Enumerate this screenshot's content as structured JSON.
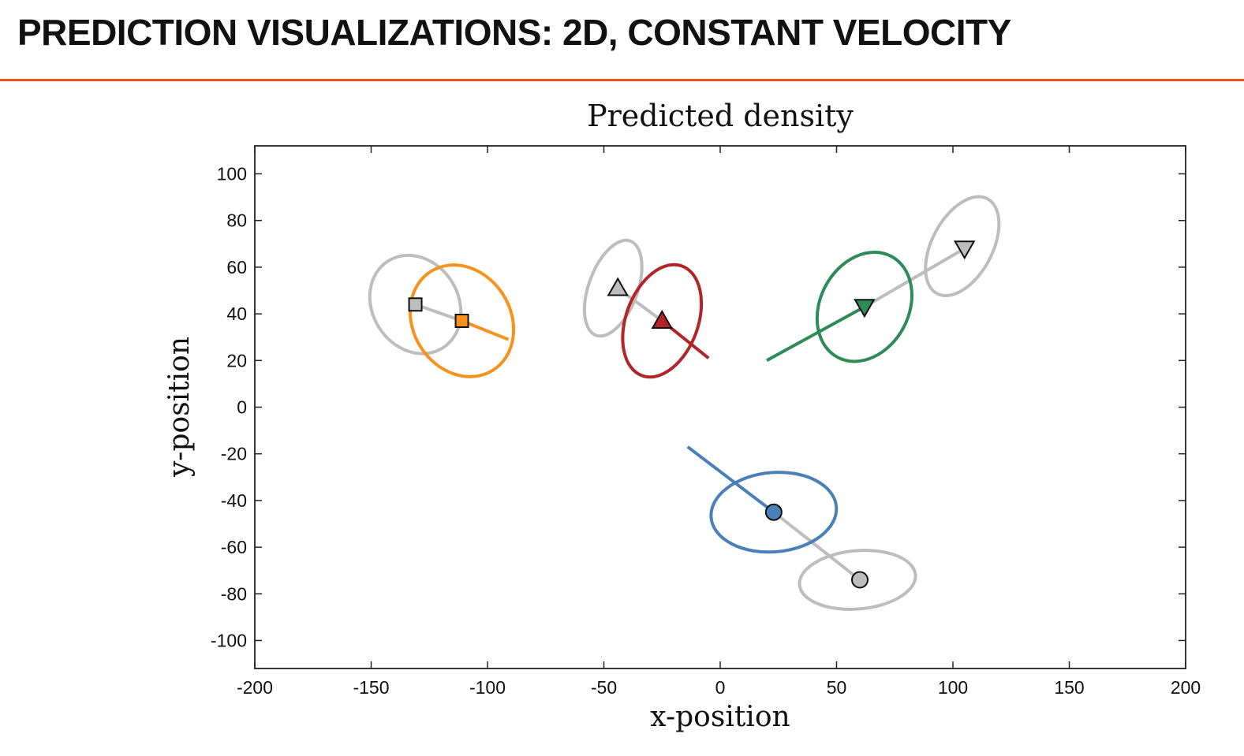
{
  "slide": {
    "title": "PREDICTION VISUALIZATIONS: 2D, CONSTANT VELOCITY",
    "accent_color": "#e8581c"
  },
  "chart_data": {
    "type": "scatter",
    "title": "Predicted density",
    "xlabel": "x-position",
    "ylabel": "y-position",
    "xlim": [
      -200,
      200
    ],
    "ylim": [
      -112,
      112
    ],
    "xticks": [
      -200,
      -150,
      -100,
      -50,
      0,
      50,
      100,
      150,
      200
    ],
    "yticks": [
      -100,
      -80,
      -60,
      -40,
      -20,
      0,
      20,
      40,
      60,
      80,
      100
    ],
    "grid": false,
    "legend": "none",
    "objects": [
      {
        "marker": "square",
        "color": "#f7921e",
        "prior": {
          "x": -131,
          "y": 44,
          "ellipse": {
            "cx": -131,
            "cy": 44,
            "rx": 18.5,
            "ry": 22,
            "angle_deg": -32
          }
        },
        "predicted": {
          "x": -111,
          "y": 37,
          "ellipse": {
            "cx": -111,
            "cy": 37,
            "rx": 21,
            "ry": 25,
            "angle_deg": -32
          }
        },
        "velocity_end": {
          "x": -91,
          "y": 29
        }
      },
      {
        "marker": "triangle-up",
        "color": "#b22428",
        "prior": {
          "x": -44,
          "y": 51,
          "ellipse": {
            "cx": -46,
            "cy": 51,
            "rx": 10.5,
            "ry": 21.5,
            "angle_deg": 20
          }
        },
        "predicted": {
          "x": -25,
          "y": 37,
          "ellipse": {
            "cx": -25,
            "cy": 37,
            "rx": 15.5,
            "ry": 25,
            "angle_deg": 20
          }
        },
        "velocity_end": {
          "x": -5,
          "y": 21
        }
      },
      {
        "marker": "triangle-down",
        "color": "#2e8b57",
        "prior": {
          "x": 105,
          "y": 68,
          "ellipse": {
            "cx": 104,
            "cy": 69,
            "rx": 13,
            "ry": 23,
            "angle_deg": 28
          }
        },
        "predicted": {
          "x": 62,
          "y": 43,
          "ellipse": {
            "cx": 62,
            "cy": 43,
            "rx": 19,
            "ry": 24.5,
            "angle_deg": 28
          }
        },
        "velocity_end": {
          "x": 20,
          "y": 20
        }
      },
      {
        "marker": "circle",
        "color": "#4a7fb8",
        "prior": {
          "x": 60,
          "y": -74,
          "ellipse": {
            "cx": 59,
            "cy": -74,
            "rx": 25,
            "ry": 12.5,
            "angle_deg": -5
          }
        },
        "predicted": {
          "x": 23,
          "y": -45,
          "ellipse": {
            "cx": 23,
            "cy": -45,
            "rx": 27,
            "ry": 17,
            "angle_deg": -5
          }
        },
        "velocity_end": {
          "x": -14,
          "y": -17
        }
      }
    ],
    "prior_color": "#bdbdbd"
  }
}
